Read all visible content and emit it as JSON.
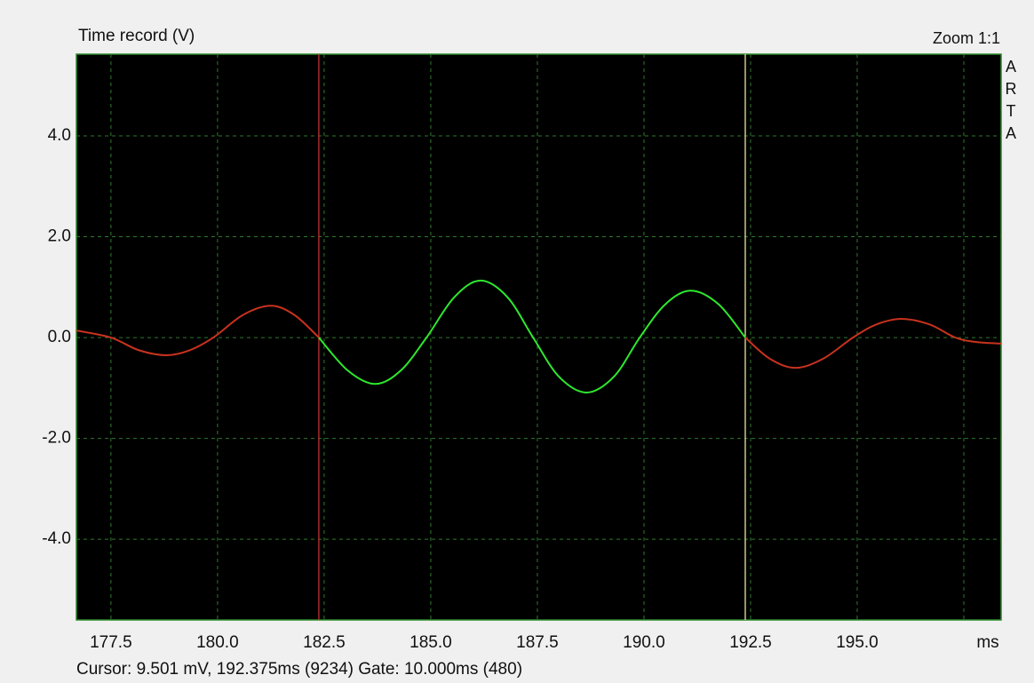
{
  "chart_data": {
    "type": "line",
    "title": "Time record (V)",
    "zoom_label": "Zoom 1:1",
    "side_label": "ARTA",
    "x_unit": "ms",
    "status": "Cursor: 9.501 mV, 192.375ms (9234)  Gate: 10.000ms (480)",
    "xlim": [
      176.69,
      198.375
    ],
    "ylim": [
      -5.6,
      5.62
    ],
    "grid": true,
    "xticks": [
      177.5,
      {
        "value": 180,
        "label": "180.0"
      },
      182.5,
      {
        "value": 185,
        "label": "185.0"
      },
      187.5,
      {
        "value": 190,
        "label": "190.0"
      },
      192.5,
      {
        "value": 195,
        "label": "195.0"
      },
      {
        "value": 197.5,
        "label": null
      }
    ],
    "yticks": [
      {
        "value": -4,
        "label": "-4.0"
      },
      {
        "value": -2,
        "label": "-2.0"
      },
      {
        "value": 0,
        "label": "0.0"
      },
      {
        "value": 2,
        "label": "2.0"
      },
      {
        "value": 4,
        "label": "4.0"
      }
    ],
    "x": [
      176.69,
      177.5,
      178.15,
      178.8,
      179.35,
      179.9,
      180.6,
      181.25,
      181.8,
      182.375,
      182.375,
      183.05,
      183.7,
      184.3,
      184.9,
      185.55,
      186.17,
      186.8,
      187.4,
      188.0,
      188.65,
      189.3,
      189.9,
      190.5,
      191.1,
      191.75,
      192.375,
      192.375,
      192.95,
      193.55,
      194.2,
      194.9,
      195.45,
      196.05,
      196.7,
      197.3,
      197.8,
      198.375
    ],
    "series": [
      {
        "color": "#c8321e",
        "values": [
          0.14,
          0,
          -0.25,
          -0.35,
          -0.25,
          0,
          0.45,
          0.63,
          0.45,
          0,
          null,
          null,
          null,
          null,
          null,
          null,
          null,
          null,
          null,
          null,
          null,
          null,
          null,
          null,
          null,
          null,
          null,
          0,
          -0.42,
          -0.6,
          -0.42,
          0,
          0.26,
          0.37,
          0.26,
          0,
          -0.09,
          -0.12
        ]
      },
      {
        "color": "#2ee82e",
        "values": [
          null,
          null,
          null,
          null,
          null,
          null,
          null,
          null,
          null,
          null,
          0,
          -0.65,
          -0.92,
          -0.65,
          0,
          0.8,
          1.13,
          0.8,
          0,
          -0.77,
          -1.09,
          -0.77,
          0,
          0.66,
          0.93,
          0.66,
          0,
          null,
          null,
          null,
          null,
          null,
          null,
          null,
          null,
          null,
          null,
          null
        ]
      }
    ],
    "markers": [
      {
        "x": 182.375,
        "color": "#c03030"
      },
      {
        "x": 192.375,
        "color": "#e8e8a0"
      }
    ]
  }
}
